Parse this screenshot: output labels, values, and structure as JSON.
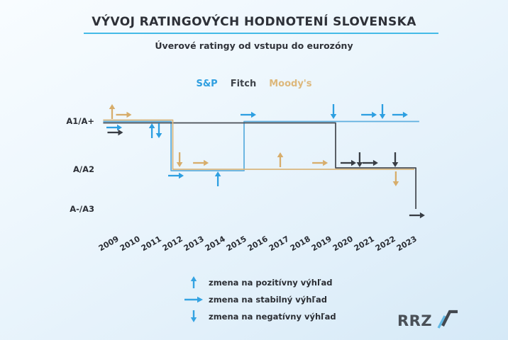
{
  "page": {
    "title": "VÝVOJ RATINGOVÝCH HODNOTENÍ SLOVENSKA",
    "subtitle": "Úverové ratingy od vstupu do eurozóny"
  },
  "legend": {
    "items": [
      {
        "label": "S&P",
        "color": "#2f9fe0"
      },
      {
        "label": "Fitch",
        "color": "#3f444b"
      },
      {
        "label": "Moody's",
        "color": "#ddb87c"
      }
    ]
  },
  "outlook_legend": {
    "arrow_color": "#35a3e2",
    "items": [
      {
        "dir": "up",
        "label": "zmena na pozitívny výhľad"
      },
      {
        "dir": "right",
        "label": "zmena na stabilný výhľad"
      },
      {
        "dir": "down",
        "label": "zmena na negatívny výhľad"
      }
    ]
  },
  "logo": {
    "text": "RRZ"
  },
  "chart_data": {
    "type": "line",
    "title": "VÝVOJ RATINGOVÝCH HODNOTENÍ SLOVENSKA",
    "subtitle": "Úverové ratingy od vstupu do eurozóny",
    "y_categories": [
      "A1/A+",
      "A/A2",
      "A-/A3"
    ],
    "x_ticks": [
      "2009",
      "2010",
      "2011",
      "2012",
      "2013",
      "2014",
      "2015",
      "2016",
      "2017",
      "2018",
      "2019",
      "2020",
      "2021",
      "2022",
      "2023"
    ],
    "x_range": [
      2008.68,
      2023.6
    ],
    "grid": false,
    "legend_position": "top",
    "series": [
      {
        "name": "S&P",
        "line_color": "#5fafdf",
        "arrow_color": "#2d9fe1",
        "level_offsets": {
          "A1/A+": 0.5,
          "A/A2": 2
        },
        "points": [
          [
            2008.68,
            "A1/A+"
          ],
          [
            2011.87,
            "A1/A+"
          ],
          [
            2011.87,
            "A/A2"
          ],
          [
            2015.3,
            "A/A2"
          ],
          [
            2015.3,
            "A1/A+"
          ],
          [
            2023.53,
            "A1/A+"
          ]
        ]
      },
      {
        "name": "Fitch",
        "line_color": "#4a4f56",
        "arrow_color": "#383d44",
        "level_offsets": {
          "A1/A+": 2.5,
          "A/A2": -2,
          "A-/A3": 0
        },
        "points": [
          [
            2008.68,
            "A1/A+"
          ],
          [
            2019.6,
            "A1/A+"
          ],
          [
            2019.6,
            "A/A2"
          ],
          [
            2023.37,
            "A/A2"
          ],
          [
            2023.37,
            "A-/A3"
          ]
        ]
      },
      {
        "name": "Moody's",
        "line_color": "#d9b67e",
        "arrow_color": "#d7ad6b",
        "level_offsets": {
          "A1/A+": -1.5,
          "A/A2": 0
        },
        "points": [
          [
            2008.68,
            "A1/A+"
          ],
          [
            2011.95,
            "A1/A+"
          ],
          [
            2011.95,
            "A/A2"
          ],
          [
            2023.3,
            "A/A2"
          ]
        ]
      }
    ],
    "outlook_markers": [
      {
        "series": "Moody's",
        "year": 2009.1,
        "level": "A1/A+",
        "dir": "up",
        "side": "above"
      },
      {
        "series": "Moody's",
        "year": 2009.65,
        "level": "A1/A+",
        "dir": "right",
        "side": "above"
      },
      {
        "series": "S&P",
        "year": 2009.2,
        "level": "A1/A+",
        "dir": "right",
        "side": "below"
      },
      {
        "series": "Fitch",
        "year": 2009.25,
        "level": "A1/A+",
        "dir": "right",
        "side": "below",
        "row": 2
      },
      {
        "series": "S&P",
        "year": 2010.97,
        "level": "A1/A+",
        "dir": "up",
        "side": "below"
      },
      {
        "series": "S&P",
        "year": 2011.3,
        "level": "A1/A+",
        "dir": "down",
        "side": "below"
      },
      {
        "series": "Moody's",
        "year": 2012.27,
        "level": "A/A2",
        "dir": "down",
        "side": "above"
      },
      {
        "series": "S&P",
        "year": 2012.1,
        "level": "A/A2",
        "dir": "right",
        "side": "below"
      },
      {
        "series": "Moody's",
        "year": 2013.27,
        "level": "A/A2",
        "dir": "right",
        "side": "above"
      },
      {
        "series": "S&P",
        "year": 2014.07,
        "level": "A/A2",
        "dir": "up",
        "side": "below"
      },
      {
        "series": "S&P",
        "year": 2015.5,
        "level": "A1/A+",
        "dir": "right",
        "side": "above"
      },
      {
        "series": "Moody's",
        "year": 2017.0,
        "level": "A/A2",
        "dir": "up",
        "side": "above"
      },
      {
        "series": "Moody's",
        "year": 2018.87,
        "level": "A/A2",
        "dir": "right",
        "side": "above"
      },
      {
        "series": "S&P",
        "year": 2019.5,
        "level": "A1/A+",
        "dir": "down",
        "side": "above"
      },
      {
        "series": "Fitch",
        "year": 2020.2,
        "level": "A/A2",
        "dir": "right",
        "side": "above"
      },
      {
        "series": "Fitch",
        "year": 2020.73,
        "level": "A/A2",
        "dir": "down",
        "side": "above"
      },
      {
        "series": "Fitch",
        "year": 2021.23,
        "level": "A/A2",
        "dir": "right",
        "side": "above"
      },
      {
        "series": "S&P",
        "year": 2021.17,
        "level": "A1/A+",
        "dir": "right",
        "side": "above"
      },
      {
        "series": "S&P",
        "year": 2021.8,
        "level": "A1/A+",
        "dir": "down",
        "side": "above"
      },
      {
        "series": "Fitch",
        "year": 2022.4,
        "level": "A/A2",
        "dir": "down",
        "side": "above"
      },
      {
        "series": "Moody's",
        "year": 2022.43,
        "level": "A/A2",
        "dir": "down",
        "side": "below"
      },
      {
        "series": "S&P",
        "year": 2022.63,
        "level": "A1/A+",
        "dir": "right",
        "side": "above"
      },
      {
        "series": "Fitch",
        "year": 2023.43,
        "level": "A-/A3",
        "dir": "right",
        "side": "below"
      }
    ]
  }
}
